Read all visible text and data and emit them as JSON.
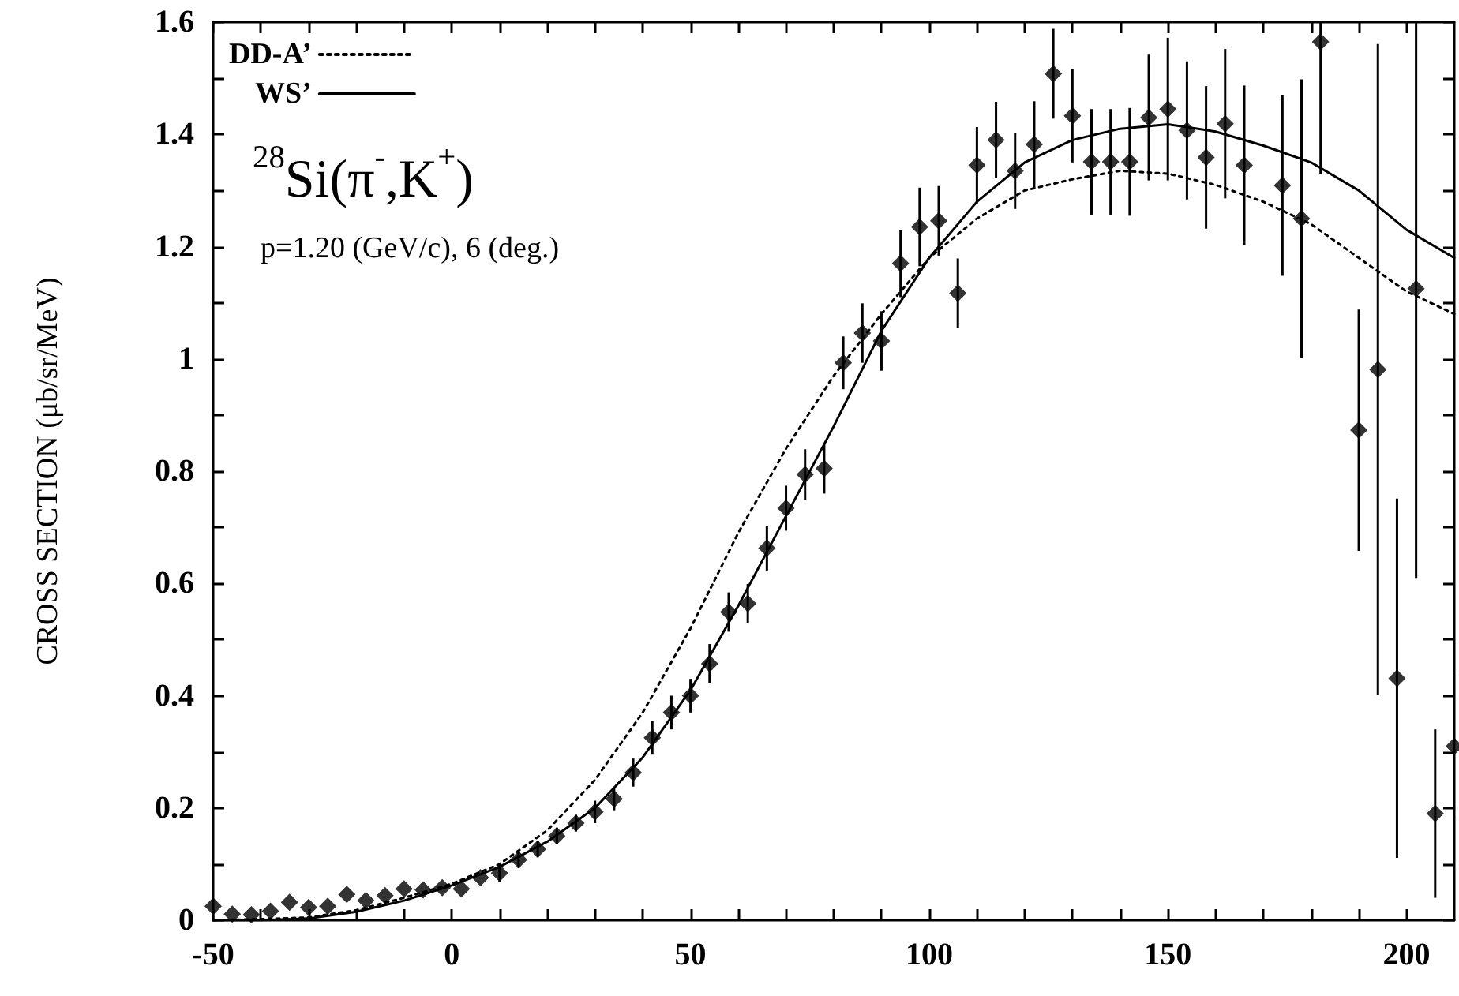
{
  "chart_data": {
    "type": "scatter",
    "ylabel": "CROSS SECTION (μb/sr/MeV)",
    "annotations": [
      "$^{28}$Si(π$^{-}$,K$^{+}$)",
      "p=1.20 (GeV/c), 6 (deg.)"
    ],
    "xlim": [
      -50,
      210
    ],
    "ylim": [
      0,
      1.6
    ],
    "xticks": [
      -50,
      {
        "value": -40,
        "label": null
      },
      {
        "value": -30,
        "label": null
      },
      {
        "value": -20,
        "label": null
      },
      {
        "value": -10,
        "label": null
      },
      0,
      {
        "value": 10,
        "label": null
      },
      {
        "value": 20,
        "label": null
      },
      {
        "value": 30,
        "label": null
      },
      {
        "value": 40,
        "label": null
      },
      50,
      {
        "value": 60,
        "label": null
      },
      {
        "value": 70,
        "label": null
      },
      {
        "value": 80,
        "label": null
      },
      {
        "value": 90,
        "label": null
      },
      100,
      {
        "value": 110,
        "label": null
      },
      {
        "value": 120,
        "label": null
      },
      {
        "value": 130,
        "label": null
      },
      {
        "value": 140,
        "label": null
      },
      150,
      {
        "value": 160,
        "label": null
      },
      {
        "value": 170,
        "label": null
      },
      {
        "value": 180,
        "label": null
      },
      {
        "value": 190,
        "label": null
      },
      200
    ],
    "yticks": [
      0,
      {
        "value": 0.1,
        "label": null
      },
      0.2,
      {
        "value": 0.3,
        "label": null
      },
      0.4,
      {
        "value": 0.5,
        "label": null
      },
      0.6,
      {
        "value": 0.7,
        "label": null
      },
      0.8,
      {
        "value": 0.9,
        "label": null
      },
      1,
      {
        "value": 1.1,
        "label": null
      },
      1.2,
      {
        "value": 1.3,
        "label": null
      },
      1.4,
      {
        "value": 1.5,
        "label": null
      },
      1.6
    ],
    "grid": false,
    "legend": "top left",
    "series": [
      {
        "type": "line",
        "name": "DD-A’",
        "color": "#000000",
        "line_style": "dotted",
        "marker": "none",
        "x": [
          -50,
          -40,
          -30,
          -20,
          -10,
          0,
          10,
          20,
          30,
          40,
          50,
          60,
          70,
          80,
          90,
          100,
          110,
          120,
          130,
          140,
          150,
          160,
          170,
          180,
          190,
          200,
          210
        ],
        "values": [
          0,
          0.002,
          0.005,
          0.018,
          0.04,
          0.065,
          0.1,
          0.16,
          0.25,
          0.37,
          0.52,
          0.69,
          0.84,
          0.97,
          1.08,
          1.18,
          1.25,
          1.3,
          1.32,
          1.335,
          1.33,
          1.31,
          1.28,
          1.24,
          1.18,
          1.12,
          1.08
        ]
      },
      {
        "type": "line",
        "name": "WS’",
        "color": "#000000",
        "line_style": "solid",
        "marker": "none",
        "x": [
          -50,
          -40,
          -30,
          -20,
          -10,
          0,
          10,
          20,
          30,
          40,
          50,
          60,
          70,
          80,
          90,
          100,
          110,
          120,
          130,
          140,
          150,
          160,
          170,
          180,
          190,
          200,
          210
        ],
        "values": [
          0,
          0,
          0.003,
          0.015,
          0.035,
          0.062,
          0.095,
          0.14,
          0.2,
          0.29,
          0.41,
          0.56,
          0.72,
          0.88,
          1.05,
          1.18,
          1.28,
          1.35,
          1.39,
          1.41,
          1.418,
          1.405,
          1.38,
          1.35,
          1.3,
          1.23,
          1.18
        ]
      },
      {
        "color": "#000000",
        "marker": "diamond",
        "x": [
          -50,
          -46,
          -42,
          -38,
          -34,
          -30,
          -26,
          -22,
          -18,
          -14,
          -10,
          -6,
          -2,
          2,
          6,
          10,
          14,
          18,
          22,
          26,
          30,
          34,
          38,
          42,
          46,
          50,
          54,
          58,
          62,
          66,
          70,
          74,
          78,
          82,
          86,
          90,
          94,
          98,
          102,
          106,
          110,
          114,
          118,
          122,
          126,
          130,
          134,
          138,
          142,
          146,
          150,
          154,
          158,
          162,
          166,
          174,
          178,
          182,
          190,
          194,
          198,
          202,
          206,
          210
        ],
        "values": [
          0.025,
          0.011,
          0.01,
          0.016,
          0.032,
          0.023,
          0.025,
          0.046,
          0.035,
          0.044,
          0.056,
          0.054,
          0.058,
          0.056,
          0.076,
          0.084,
          0.108,
          0.127,
          0.15,
          0.173,
          0.193,
          0.216,
          0.263,
          0.325,
          0.37,
          0.4,
          0.457,
          0.549,
          0.564,
          0.663,
          0.734,
          0.794,
          0.805,
          0.993,
          1.046,
          1.032,
          1.17,
          1.235,
          1.246,
          1.117,
          1.345,
          1.39,
          1.335,
          1.382,
          1.508,
          1.433,
          1.351,
          1.351,
          1.351,
          1.43,
          1.445,
          1.407,
          1.359,
          1.419,
          1.345,
          1.309,
          1.25,
          1.565,
          0.873,
          0.981,
          0.431,
          1.125,
          0.19,
          0.31
        ],
        "errors": [
          null,
          null,
          null,
          null,
          null,
          null,
          null,
          null,
          null,
          null,
          null,
          null,
          null,
          null,
          null,
          0.015,
          0.015,
          0.015,
          0.015,
          0.015,
          0.02,
          0.02,
          0.025,
          0.03,
          0.03,
          0.03,
          0.035,
          0.035,
          0.035,
          0.04,
          0.04,
          0.045,
          0.045,
          0.047,
          0.053,
          0.053,
          0.06,
          0.07,
          0.062,
          0.062,
          0.068,
          0.068,
          0.068,
          0.077,
          0.08,
          0.083,
          0.094,
          0.094,
          0.096,
          0.112,
          0.127,
          0.123,
          0.127,
          0.133,
          0.142,
          0.161,
          0.248,
          [
            1.33,
            1.6
          ],
          0.215,
          0.58,
          0.32,
          [
            0.61,
            1.6
          ],
          0.15,
          0.13
        ]
      }
    ]
  }
}
